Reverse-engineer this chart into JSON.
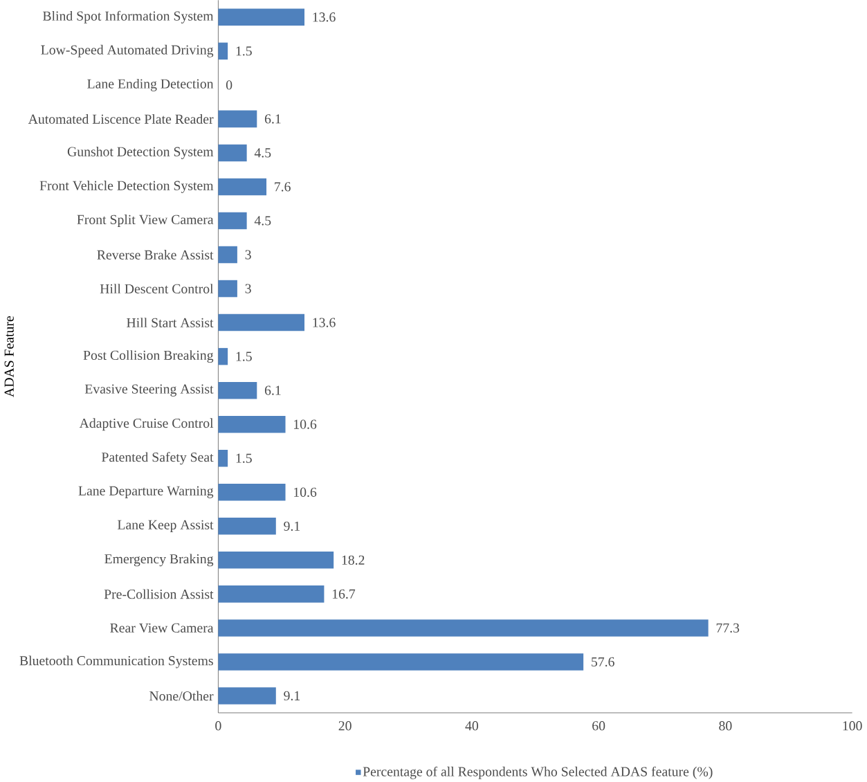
{
  "chart_data": {
    "type": "bar",
    "orientation": "horizontal",
    "ylabel": "ADAS Feature",
    "categories": [
      "Blind Spot Information System",
      "Low-Speed Automated Driving",
      "Lane Ending Detection",
      "Automated Liscence Plate Reader",
      "Gunshot Detection System",
      "Front Vehicle Detection System",
      "Front Split View Camera",
      "Reverse Brake Assist",
      "Hill Descent Control",
      "Hill Start Assist",
      "Post Collision Breaking",
      "Evasive Steering Assist",
      "Adaptive Cruise Control",
      "Patented Safety Seat",
      "Lane Departure Warning",
      "Lane Keep Assist",
      "Emergency Braking",
      "Pre-Collision Assist",
      "Rear View Camera",
      "Bluetooth Communication Systems",
      "None/Other"
    ],
    "series": [
      {
        "name": "Percentage of all Respondents Who Selected ADAS feature (%)",
        "color": "#4f81bd",
        "values": [
          13.6,
          1.5,
          0,
          6.1,
          4.5,
          7.6,
          4.5,
          3,
          3,
          13.6,
          1.5,
          6.1,
          10.6,
          1.5,
          10.6,
          9.1,
          18.2,
          16.7,
          77.3,
          57.6,
          9.1
        ]
      }
    ],
    "xlim": [
      0,
      100
    ],
    "xticks": [
      0,
      20,
      40,
      60,
      80,
      100
    ],
    "data_labels": true,
    "legend": "bottom",
    "grid": false
  }
}
